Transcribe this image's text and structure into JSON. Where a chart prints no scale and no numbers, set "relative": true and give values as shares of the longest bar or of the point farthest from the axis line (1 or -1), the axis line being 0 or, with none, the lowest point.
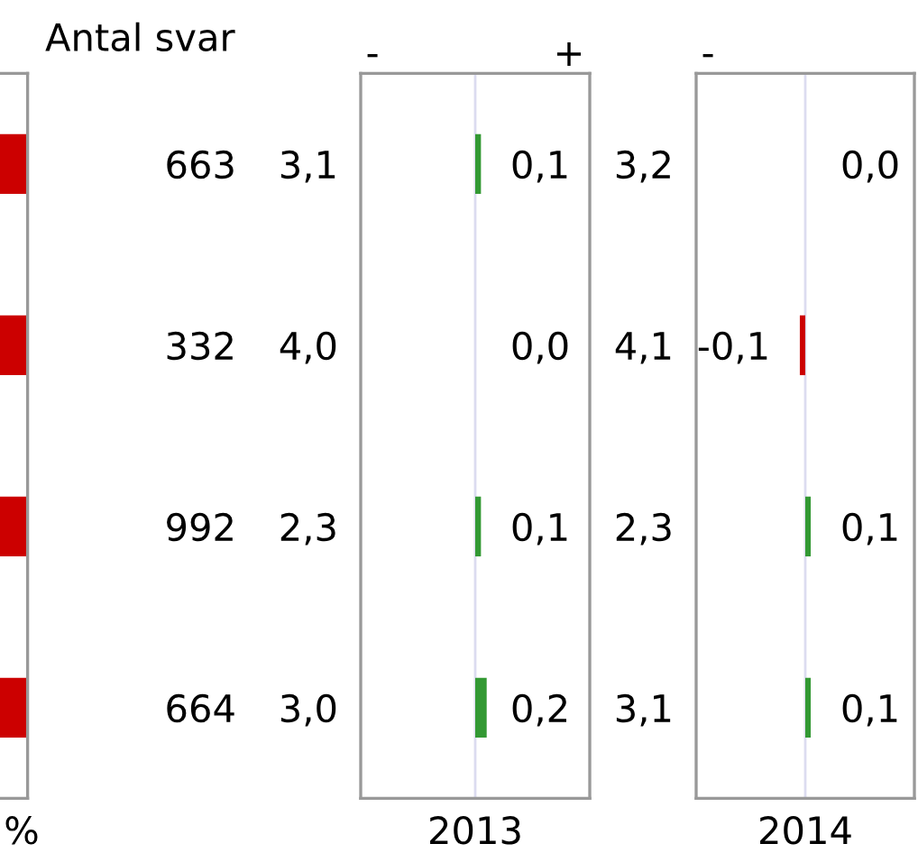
{
  "chart_data": [
    {
      "type": "bar",
      "orientation": "horizontal",
      "relative": true,
      "categories": [
        null,
        null,
        null,
        null
      ],
      "values": [
        1,
        1,
        1,
        1
      ],
      "color": "#cc0000",
      "xlabel": "%",
      "tick_labels": false
    },
    {
      "type": "other",
      "title": "Antal svar",
      "annotations": [
        "663",
        "332",
        "992",
        "664"
      ]
    },
    {
      "type": "bar",
      "orientation": "horizontal",
      "categories": [
        "3,1",
        "4,0",
        "2,3",
        "3,0"
      ],
      "values": [
        0.1,
        0.0,
        0.1,
        0.2
      ],
      "colors": [
        "#339933",
        "#339933",
        "#339933",
        "#339933"
      ],
      "value_labels": [
        "0,1",
        "0,0",
        "0,1",
        "0,2"
      ],
      "xlim": [
        -2,
        2
      ],
      "ref_lines": [
        {
          "axis": "x",
          "value": 0,
          "color": "#dcdcf0"
        }
      ],
      "xlabel": "2013",
      "annotations": [
        "-",
        "+"
      ],
      "tick_labels": "y"
    },
    {
      "type": "bar",
      "orientation": "horizontal",
      "categories": [
        "3,2",
        "4,1",
        "2,3",
        "3,1"
      ],
      "values": [
        0.0,
        -0.1,
        0.1,
        0.1
      ],
      "colors": [
        "#339933",
        "#cc0000",
        "#339933",
        "#339933"
      ],
      "value_labels": [
        "0,0",
        "-0,1",
        "0,1",
        "0,1"
      ],
      "xlim": [
        -2,
        2
      ],
      "ref_lines": [
        {
          "axis": "x",
          "value": 0,
          "color": "#dcdcf0"
        }
      ],
      "xlabel": "2014",
      "annotations": [
        "-"
      ],
      "tick_labels": "y"
    }
  ]
}
